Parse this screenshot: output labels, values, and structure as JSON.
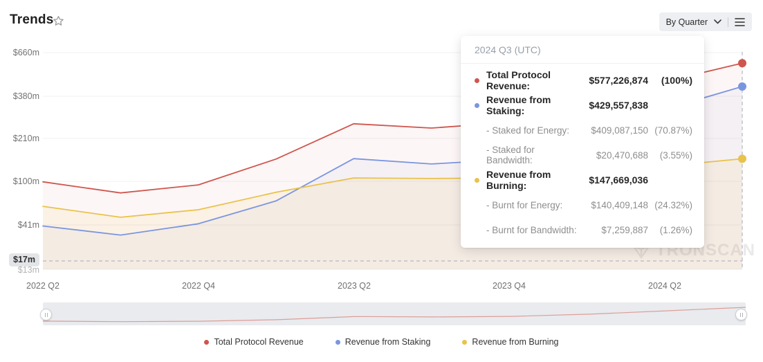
{
  "header": {
    "title": "Trends",
    "favorite_icon": "star-outline",
    "range_selector": "By Quarter"
  },
  "axis": {
    "y_ticks": [
      "$660m",
      "$380m",
      "$210m",
      "$100m",
      "$41m",
      "$17m",
      "$13m"
    ],
    "x_ticks": [
      "2022 Q2",
      "2022 Q4",
      "2023 Q2",
      "2023 Q4",
      "2024 Q2"
    ]
  },
  "tooltip": {
    "title": "2024 Q3 (UTC)",
    "rows": [
      {
        "label": "Total Protocol Revenue:",
        "value": "$577,226,874",
        "pct": "(100%)",
        "dot": "#cf564e",
        "main": true
      },
      {
        "label": "Revenue from Staking:",
        "value": "$429,557,838",
        "pct": "",
        "dot": "#7a95e0",
        "main": true
      },
      {
        "label": "- Staked for Energy:",
        "value": "$409,087,150",
        "pct": "(70.87%)",
        "dot": "",
        "main": false
      },
      {
        "label": "- Staked for Bandwidth:",
        "value": "$20,470,688",
        "pct": "(3.55%)",
        "dot": "",
        "main": false
      },
      {
        "label": "Revenue from Burning:",
        "value": "$147,669,036",
        "pct": "",
        "dot": "#e9c24b",
        "main": true
      },
      {
        "label": "- Burnt for Energy:",
        "value": "$140,409,148",
        "pct": "(24.32%)",
        "dot": "",
        "main": false
      },
      {
        "label": "- Burnt for Bandwidth:",
        "value": "$7,259,887",
        "pct": "(1.26%)",
        "dot": "",
        "main": false
      }
    ]
  },
  "legend": [
    {
      "label": "Total Protocol Revenue",
      "color": "#cf564e"
    },
    {
      "label": "Revenue from Staking",
      "color": "#7a95e0"
    },
    {
      "label": "Revenue from Burning",
      "color": "#e9c24b"
    }
  ],
  "watermark": "TRONSCAN",
  "chart_data": {
    "type": "line",
    "title": "Trends",
    "x": [
      "2022 Q2",
      "2022 Q3",
      "2022 Q4",
      "2023 Q1",
      "2023 Q2",
      "2023 Q3",
      "2023 Q4",
      "2024 Q1",
      "2024 Q2",
      "2024 Q3"
    ],
    "unit": "USD (millions)",
    "y_scale": "custom (log-like), ticks top to bottom",
    "y_tick_values": [
      660,
      380,
      210,
      100,
      41,
      17,
      13
    ],
    "threshold_line_value": 17,
    "highlighted_x": "2024 Q3",
    "legend_position": "bottom-center",
    "grid": "horizontal only",
    "series": [
      {
        "name": "Total Protocol Revenue",
        "color": "#cf564e",
        "fill_opacity": 0.05,
        "values": [
          99,
          79,
          93,
          147,
          258,
          243,
          263,
          340,
          457,
          577.2
        ]
      },
      {
        "name": "Revenue from Staking",
        "color": "#7a95e0",
        "fill_opacity": 0.06,
        "values": [
          40,
          32,
          42,
          67,
          148,
          135,
          146,
          230,
          316,
          429.6
        ]
      },
      {
        "name": "Revenue from Burning",
        "color": "#e9c24b",
        "fill_opacity": 0.1,
        "values": [
          60,
          48,
          56,
          80,
          106,
          105,
          106,
          117,
          130,
          147.7
        ]
      }
    ],
    "minimap": {
      "series": "Total Protocol Revenue",
      "line_color": "#dd9d98",
      "track_color": "#e9ebee"
    }
  }
}
